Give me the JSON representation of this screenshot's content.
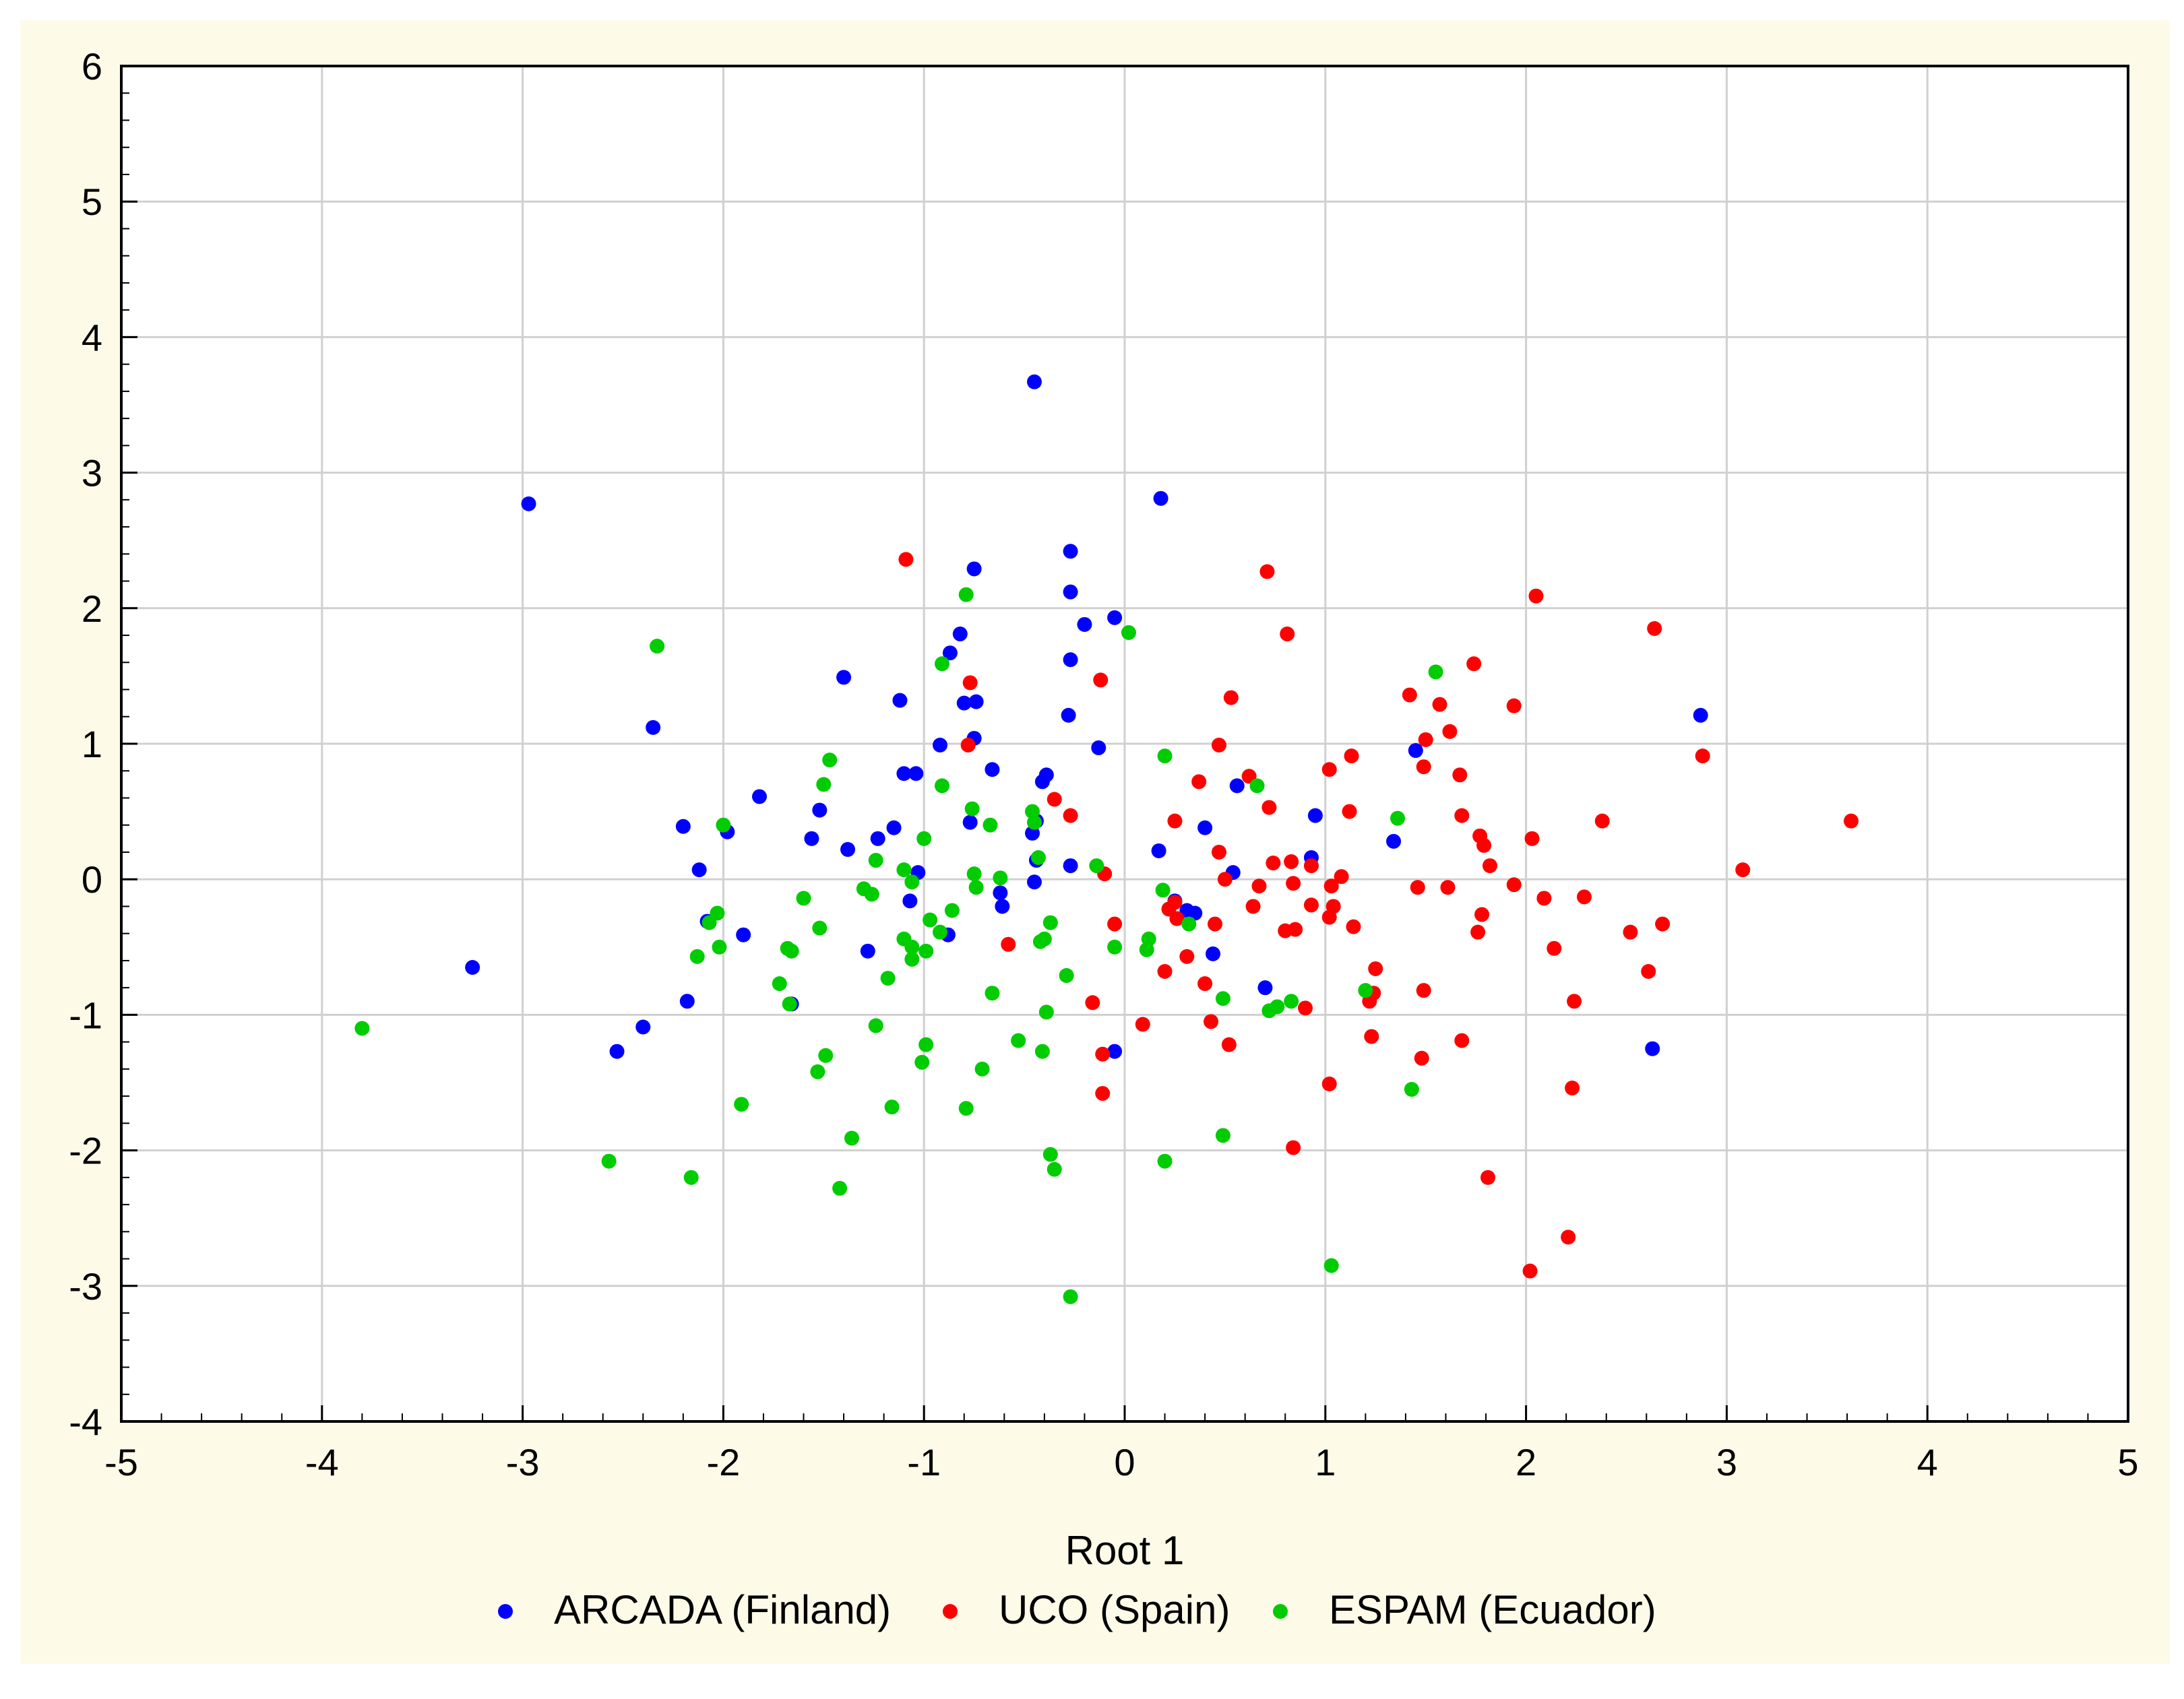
{
  "chart_data": {
    "type": "scatter",
    "title": "",
    "xlabel": "Root 1",
    "ylabel": "",
    "xlim": [
      -5,
      5
    ],
    "ylim": [
      -4,
      6
    ],
    "x_ticks": [
      "-5",
      "-4",
      "-3",
      "-2",
      "-1",
      "0",
      "1",
      "2",
      "3",
      "4",
      "5"
    ],
    "y_ticks": [
      "6",
      "5",
      "4",
      "3",
      "2",
      "1",
      "0",
      "-1",
      "-2",
      "-3",
      "-4"
    ],
    "grid": true,
    "legend_position": "bottom",
    "series": [
      {
        "name": "ARCADA (Finland)",
        "color": "#0000ff",
        "points": [
          [
            -0.45,
            3.67
          ],
          [
            -2.97,
            2.77
          ],
          [
            0.18,
            2.81
          ],
          [
            -0.27,
            2.42
          ],
          [
            -0.75,
            2.29
          ],
          [
            -0.27,
            2.12
          ],
          [
            -0.05,
            1.93
          ],
          [
            -0.2,
            1.88
          ],
          [
            -0.82,
            1.81
          ],
          [
            -0.87,
            1.67
          ],
          [
            -0.27,
            1.62
          ],
          [
            -1.4,
            1.49
          ],
          [
            -1.12,
            1.32
          ],
          [
            -0.8,
            1.3
          ],
          [
            -0.74,
            1.31
          ],
          [
            -0.28,
            1.21
          ],
          [
            2.87,
            1.21
          ],
          [
            -2.35,
            1.12
          ],
          [
            -0.75,
            1.04
          ],
          [
            -0.92,
            0.99
          ],
          [
            -0.13,
            0.97
          ],
          [
            1.45,
            0.95
          ],
          [
            -0.66,
            0.81
          ],
          [
            -1.1,
            0.78
          ],
          [
            -1.04,
            0.78
          ],
          [
            -0.39,
            0.77
          ],
          [
            -0.41,
            0.72
          ],
          [
            0.56,
            0.69
          ],
          [
            -1.82,
            0.61
          ],
          [
            -1.52,
            0.51
          ],
          [
            -0.77,
            0.42
          ],
          [
            -0.44,
            0.43
          ],
          [
            0.95,
            0.47
          ],
          [
            -2.2,
            0.39
          ],
          [
            -1.15,
            0.38
          ],
          [
            0.4,
            0.38
          ],
          [
            -1.98,
            0.35
          ],
          [
            -0.46,
            0.34
          ],
          [
            -1.23,
            0.3
          ],
          [
            -1.56,
            0.3
          ],
          [
            1.34,
            0.28
          ],
          [
            -1.38,
            0.22
          ],
          [
            0.17,
            0.21
          ],
          [
            0.93,
            0.16
          ],
          [
            -0.44,
            0.14
          ],
          [
            -0.27,
            0.1
          ],
          [
            -2.12,
            0.07
          ],
          [
            0.54,
            0.05
          ],
          [
            -1.03,
            0.05
          ],
          [
            -0.45,
            -0.02
          ],
          [
            -0.62,
            -0.1
          ],
          [
            -1.07,
            -0.16
          ],
          [
            0.25,
            -0.16
          ],
          [
            -0.61,
            -0.2
          ],
          [
            0.31,
            -0.23
          ],
          [
            0.35,
            -0.25
          ],
          [
            -2.08,
            -0.31
          ],
          [
            -0.88,
            -0.41
          ],
          [
            -1.9,
            -0.41
          ],
          [
            -1.28,
            -0.53
          ],
          [
            0.44,
            -0.55
          ],
          [
            -3.25,
            -0.65
          ],
          [
            0.7,
            -0.8
          ],
          [
            -2.18,
            -0.9
          ],
          [
            -1.66,
            -0.92
          ],
          [
            -2.4,
            -1.09
          ],
          [
            -0.05,
            -1.27
          ],
          [
            -2.53,
            -1.27
          ],
          [
            2.63,
            -1.25
          ]
        ]
      },
      {
        "name": "UCO (Spain)",
        "color": "#ff0000",
        "points": [
          [
            -1.09,
            2.36
          ],
          [
            0.71,
            2.27
          ],
          [
            2.05,
            2.09
          ],
          [
            2.64,
            1.85
          ],
          [
            0.81,
            1.81
          ],
          [
            1.74,
            1.59
          ],
          [
            -0.12,
            1.47
          ],
          [
            -0.77,
            1.45
          ],
          [
            1.42,
            1.36
          ],
          [
            0.53,
            1.34
          ],
          [
            1.57,
            1.29
          ],
          [
            1.94,
            1.28
          ],
          [
            1.5,
            1.03
          ],
          [
            1.62,
            1.09
          ],
          [
            -0.78,
            0.99
          ],
          [
            0.47,
            0.99
          ],
          [
            2.88,
            0.91
          ],
          [
            1.13,
            0.91
          ],
          [
            1.49,
            0.83
          ],
          [
            1.02,
            0.81
          ],
          [
            0.62,
            0.76
          ],
          [
            1.67,
            0.77
          ],
          [
            0.37,
            0.72
          ],
          [
            -0.35,
            0.59
          ],
          [
            0.72,
            0.53
          ],
          [
            1.12,
            0.5
          ],
          [
            -0.27,
            0.47
          ],
          [
            1.68,
            0.47
          ],
          [
            2.38,
            0.43
          ],
          [
            0.25,
            0.43
          ],
          [
            3.62,
            0.43
          ],
          [
            1.77,
            0.32
          ],
          [
            2.03,
            0.3
          ],
          [
            1.79,
            0.25
          ],
          [
            0.47,
            0.2
          ],
          [
            0.74,
            0.12
          ],
          [
            0.83,
            0.13
          ],
          [
            0.93,
            0.1
          ],
          [
            1.82,
            0.1
          ],
          [
            3.08,
            0.07
          ],
          [
            -0.1,
            0.04
          ],
          [
            1.08,
            0.02
          ],
          [
            0.5,
            0.0
          ],
          [
            0.67,
            -0.05
          ],
          [
            1.03,
            -0.05
          ],
          [
            1.46,
            -0.06
          ],
          [
            1.61,
            -0.06
          ],
          [
            1.94,
            -0.04
          ],
          [
            0.84,
            -0.03
          ],
          [
            2.09,
            -0.14
          ],
          [
            2.29,
            -0.13
          ],
          [
            0.25,
            -0.17
          ],
          [
            1.04,
            -0.2
          ],
          [
            0.93,
            -0.19
          ],
          [
            0.64,
            -0.2
          ],
          [
            0.22,
            -0.22
          ],
          [
            1.78,
            -0.26
          ],
          [
            1.02,
            -0.28
          ],
          [
            0.26,
            -0.29
          ],
          [
            0.45,
            -0.33
          ],
          [
            -0.05,
            -0.33
          ],
          [
            2.68,
            -0.33
          ],
          [
            1.14,
            -0.35
          ],
          [
            0.8,
            -0.38
          ],
          [
            0.85,
            -0.37
          ],
          [
            1.76,
            -0.39
          ],
          [
            2.52,
            -0.39
          ],
          [
            0.31,
            -0.57
          ],
          [
            2.14,
            -0.51
          ],
          [
            -0.58,
            -0.48
          ],
          [
            0.2,
            -0.68
          ],
          [
            1.25,
            -0.66
          ],
          [
            2.61,
            -0.68
          ],
          [
            0.4,
            -0.77
          ],
          [
            1.49,
            -0.82
          ],
          [
            1.24,
            -0.84
          ],
          [
            -0.16,
            -0.91
          ],
          [
            2.24,
            -0.9
          ],
          [
            1.22,
            -0.9
          ],
          [
            0.9,
            -0.95
          ],
          [
            0.09,
            -1.07
          ],
          [
            0.43,
            -1.05
          ],
          [
            1.23,
            -1.16
          ],
          [
            1.68,
            -1.19
          ],
          [
            0.52,
            -1.22
          ],
          [
            -0.11,
            -1.29
          ],
          [
            1.48,
            -1.32
          ],
          [
            1.02,
            -1.51
          ],
          [
            2.23,
            -1.54
          ],
          [
            -0.11,
            -1.58
          ],
          [
            0.84,
            -1.98
          ],
          [
            1.81,
            -2.2
          ],
          [
            2.21,
            -2.64
          ],
          [
            2.02,
            -2.89
          ]
        ]
      },
      {
        "name": "ESPAM (Ecuador)",
        "color": "#00cc00",
        "points": [
          [
            -0.79,
            2.1
          ],
          [
            0.02,
            1.82
          ],
          [
            -2.33,
            1.72
          ],
          [
            -0.91,
            1.59
          ],
          [
            1.55,
            1.53
          ],
          [
            -1.47,
            0.88
          ],
          [
            0.2,
            0.91
          ],
          [
            0.66,
            0.69
          ],
          [
            -0.91,
            0.69
          ],
          [
            -1.5,
            0.7
          ],
          [
            -0.76,
            0.52
          ],
          [
            -0.46,
            0.5
          ],
          [
            1.36,
            0.45
          ],
          [
            -0.45,
            0.42
          ],
          [
            -2.0,
            0.4
          ],
          [
            -0.67,
            0.4
          ],
          [
            -1.0,
            0.3
          ],
          [
            -0.43,
            0.16
          ],
          [
            -1.24,
            0.14
          ],
          [
            -0.14,
            0.1
          ],
          [
            -1.1,
            0.07
          ],
          [
            -0.75,
            0.04
          ],
          [
            -0.62,
            0.01
          ],
          [
            -1.06,
            -0.02
          ],
          [
            -0.74,
            -0.06
          ],
          [
            0.19,
            -0.08
          ],
          [
            -1.3,
            -0.07
          ],
          [
            -1.26,
            -0.11
          ],
          [
            -1.6,
            -0.14
          ],
          [
            -0.86,
            -0.23
          ],
          [
            -2.03,
            -0.25
          ],
          [
            -2.07,
            -0.32
          ],
          [
            -0.97,
            -0.3
          ],
          [
            -0.37,
            -0.32
          ],
          [
            0.32,
            -0.33
          ],
          [
            -1.52,
            -0.36
          ],
          [
            -0.92,
            -0.39
          ],
          [
            -1.1,
            -0.44
          ],
          [
            -0.4,
            -0.44
          ],
          [
            0.12,
            -0.44
          ],
          [
            -0.42,
            -0.46
          ],
          [
            -1.06,
            -0.5
          ],
          [
            -0.05,
            -0.5
          ],
          [
            -2.02,
            -0.5
          ],
          [
            0.11,
            -0.52
          ],
          [
            -0.99,
            -0.53
          ],
          [
            -1.68,
            -0.51
          ],
          [
            -1.66,
            -0.53
          ],
          [
            -2.13,
            -0.57
          ],
          [
            -1.06,
            -0.59
          ],
          [
            -1.18,
            -0.73
          ],
          [
            -0.29,
            -0.71
          ],
          [
            -1.72,
            -0.77
          ],
          [
            -0.66,
            -0.84
          ],
          [
            1.2,
            -0.82
          ],
          [
            0.49,
            -0.88
          ],
          [
            0.83,
            -0.9
          ],
          [
            -1.67,
            -0.92
          ],
          [
            0.76,
            -0.94
          ],
          [
            0.72,
            -0.97
          ],
          [
            -0.39,
            -0.98
          ],
          [
            -3.8,
            -1.1
          ],
          [
            -1.24,
            -1.08
          ],
          [
            -0.53,
            -1.19
          ],
          [
            -0.99,
            -1.22
          ],
          [
            -0.41,
            -1.27
          ],
          [
            -1.49,
            -1.3
          ],
          [
            -1.01,
            -1.35
          ],
          [
            -0.71,
            -1.4
          ],
          [
            -1.53,
            -1.42
          ],
          [
            1.43,
            -1.55
          ],
          [
            -1.91,
            -1.66
          ],
          [
            -1.16,
            -1.68
          ],
          [
            -0.79,
            -1.69
          ],
          [
            -1.36,
            -1.91
          ],
          [
            0.49,
            -1.89
          ],
          [
            -0.37,
            -2.03
          ],
          [
            -2.57,
            -2.08
          ],
          [
            0.2,
            -2.08
          ],
          [
            -0.35,
            -2.14
          ],
          [
            -2.16,
            -2.2
          ],
          [
            -1.42,
            -2.28
          ],
          [
            1.03,
            -2.85
          ],
          [
            -0.27,
            -3.08
          ]
        ]
      }
    ]
  }
}
